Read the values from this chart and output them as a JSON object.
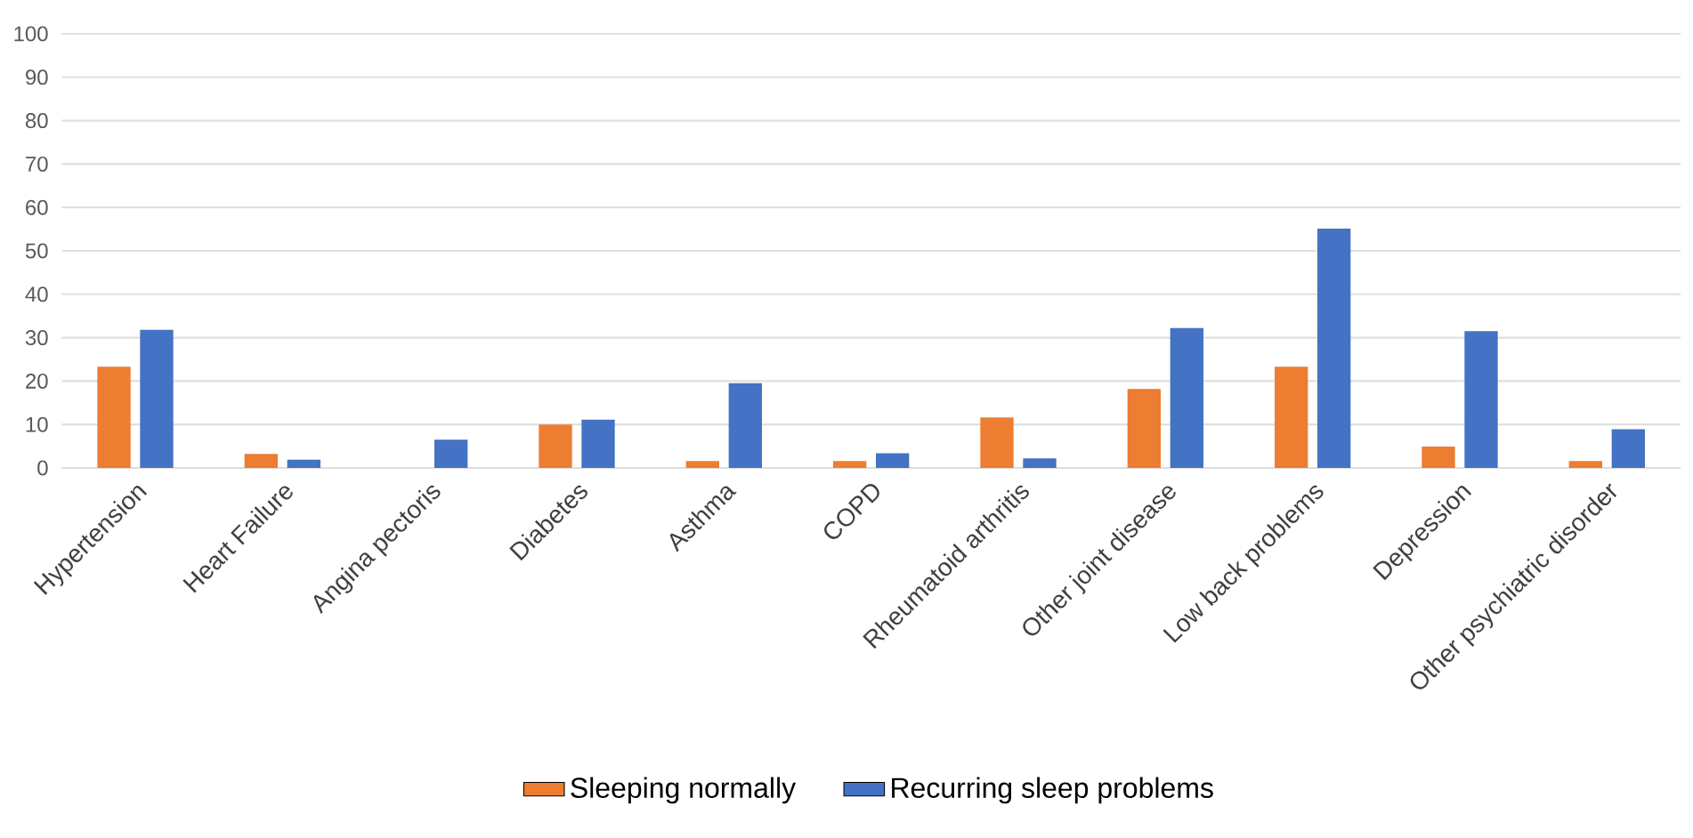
{
  "chart_data": {
    "type": "bar",
    "categories": [
      "Hypertension",
      "Heart Failure",
      "Angina pectoris",
      "Diabetes",
      "Asthma",
      "COPD",
      "Rheumatoid arthritis",
      "Other joint disease",
      "Low back problems",
      "Depression",
      "Other psychiatric disorder"
    ],
    "series": [
      {
        "name": "Sleeping normally",
        "color": "#ed7d31",
        "values": [
          23.3,
          3.2,
          0,
          10,
          1.6,
          1.6,
          11.6,
          18.2,
          23.3,
          4.9,
          1.6
        ]
      },
      {
        "name": "Recurring sleep problems",
        "color": "#4472c4",
        "values": [
          31.8,
          1.9,
          6.5,
          11.1,
          19.5,
          3.4,
          2.2,
          32.2,
          55.1,
          31.5,
          8.9
        ]
      }
    ],
    "ylim": [
      0,
      100
    ],
    "yticks": [
      0,
      10,
      20,
      30,
      40,
      50,
      60,
      70,
      80,
      90,
      100
    ],
    "grid": "y",
    "legend": "bottom"
  }
}
